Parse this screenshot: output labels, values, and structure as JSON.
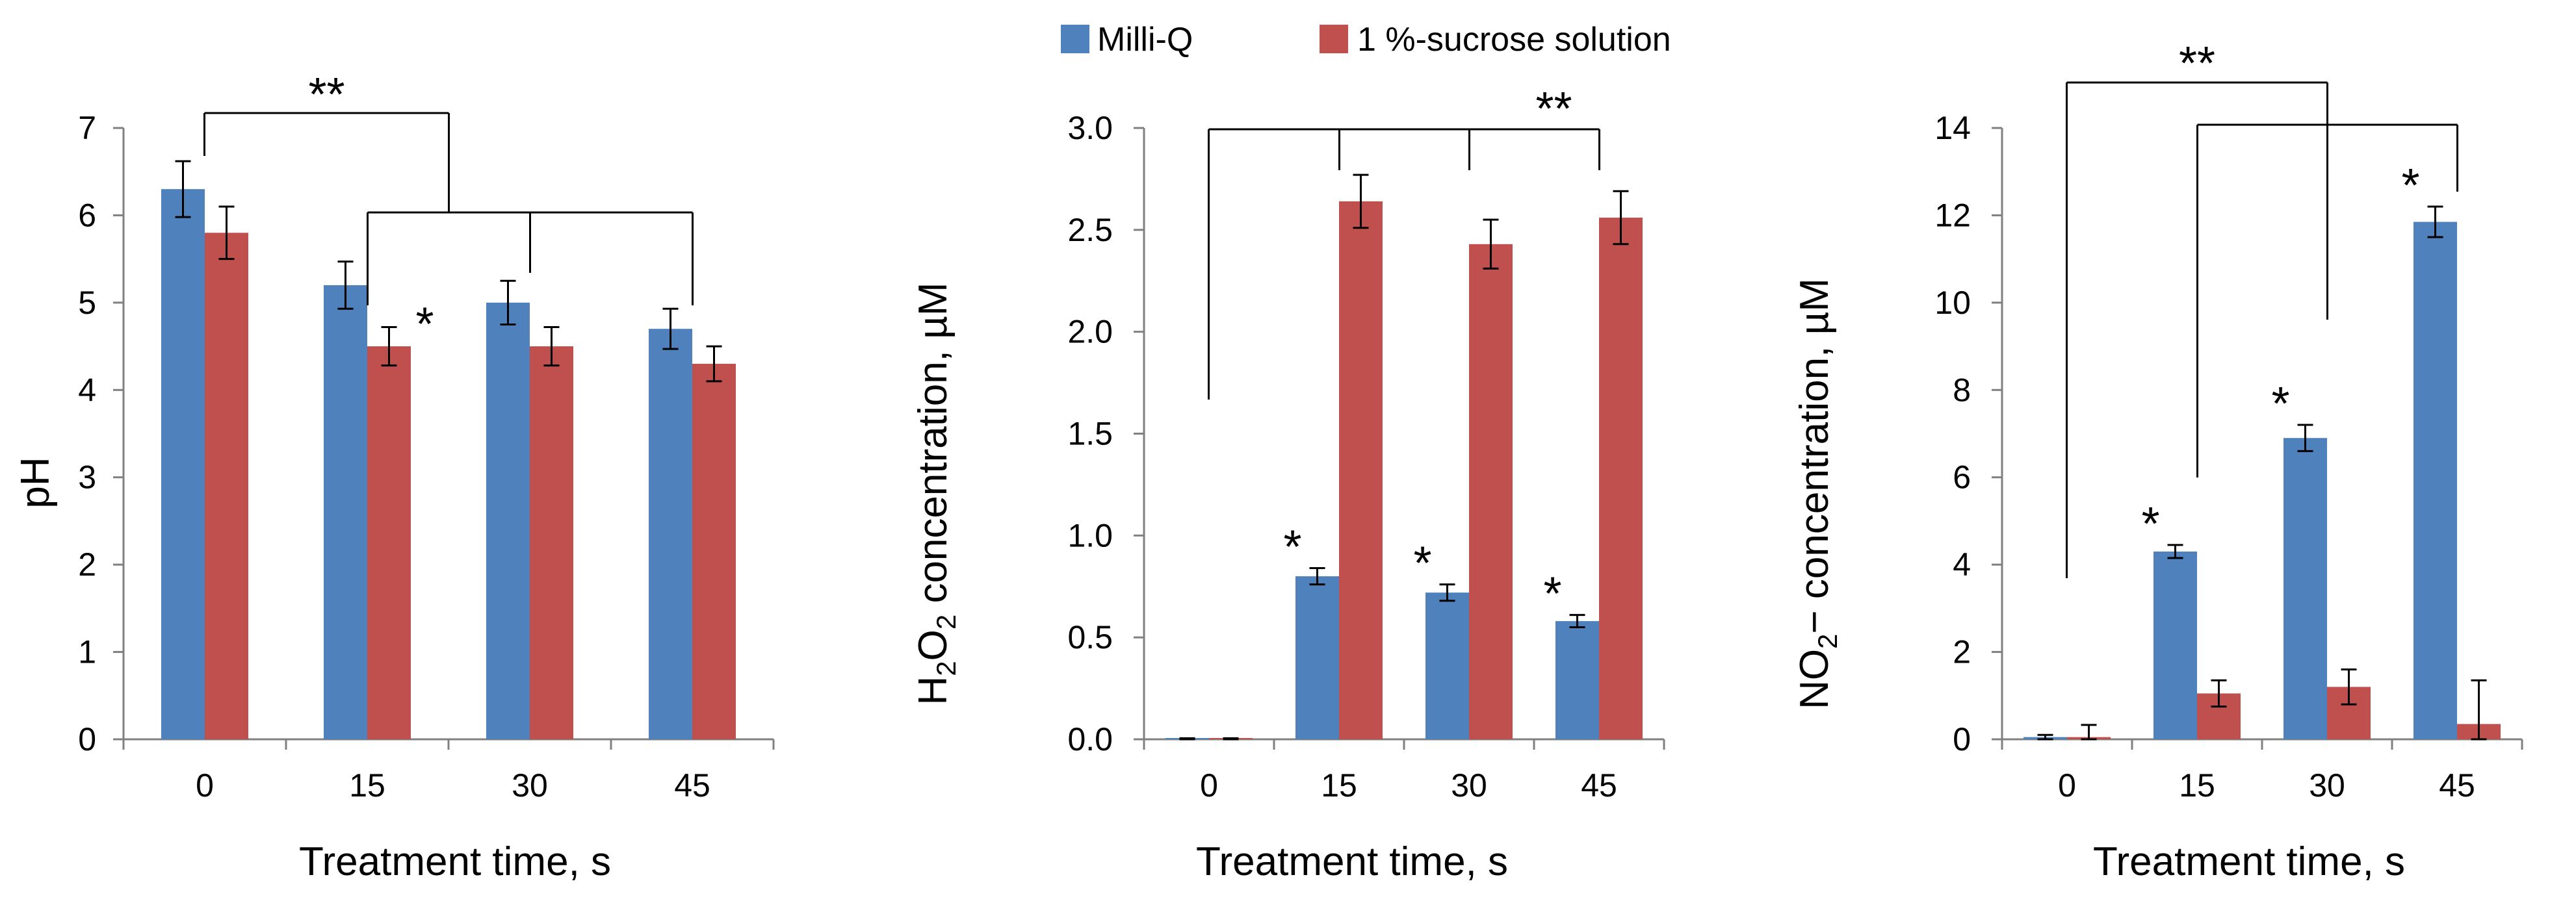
{
  "legend": [
    {
      "name": "Milli-Q",
      "color": "#4f81bd"
    },
    {
      "name": "1 %-sucrose solution",
      "color": "#c0504d"
    }
  ],
  "chart_data": [
    {
      "type": "bar",
      "categories": [
        "0",
        "15",
        "30",
        "45"
      ],
      "series": [
        {
          "name": "Milli-Q",
          "values": [
            6.3,
            5.2,
            5.0,
            4.7
          ],
          "errors": [
            0.32,
            0.27,
            0.25,
            0.23
          ]
        },
        {
          "name": "1 %-sucrose solution",
          "values": [
            5.8,
            4.5,
            4.5,
            4.3
          ],
          "errors": [
            0.3,
            0.22,
            0.22,
            0.2
          ]
        }
      ],
      "xlabel": "Treatment time, s",
      "ylabel": "pH",
      "ylim": [
        0,
        7
      ],
      "yticks": [
        0,
        1,
        2,
        3,
        4,
        5,
        6,
        7
      ],
      "ytick_labels": [
        "0",
        "1",
        "2",
        "3",
        "4",
        "5",
        "6",
        "7"
      ],
      "annotations": {
        "single": [
          {
            "category": 1,
            "series": 1,
            "text": "*"
          }
        ],
        "double": "**"
      }
    },
    {
      "type": "bar",
      "categories": [
        "0",
        "15",
        "30",
        "45"
      ],
      "series": [
        {
          "name": "Milli-Q",
          "values": [
            0.0,
            0.8,
            0.72,
            0.58
          ],
          "errors": [
            0.005,
            0.04,
            0.04,
            0.03
          ]
        },
        {
          "name": "1 %-sucrose solution",
          "values": [
            0.0,
            2.64,
            2.43,
            2.56
          ],
          "errors": [
            0.005,
            0.13,
            0.12,
            0.13
          ]
        }
      ],
      "xlabel": "Treatment time, s",
      "ylabel_parts": [
        "H",
        "2",
        "O",
        "2",
        " concentration, µM"
      ],
      "ylim": [
        0,
        3
      ],
      "yticks": [
        0,
        0.5,
        1.0,
        1.5,
        2.0,
        2.5,
        3.0
      ],
      "ytick_labels": [
        "0.0",
        "0.5",
        "1.0",
        "1.5",
        "2.0",
        "2.5",
        "3.0"
      ],
      "annotations": {
        "single": [
          {
            "category": 1,
            "series": 0,
            "text": "*"
          },
          {
            "category": 2,
            "series": 0,
            "text": "*"
          },
          {
            "category": 3,
            "series": 0,
            "text": "*"
          }
        ],
        "double": "**"
      }
    },
    {
      "type": "bar",
      "categories": [
        "0",
        "15",
        "30",
        "45"
      ],
      "series": [
        {
          "name": "Milli-Q",
          "values": [
            0.05,
            4.3,
            6.9,
            11.85
          ],
          "errors": [
            0.05,
            0.15,
            0.3,
            0.35
          ]
        },
        {
          "name": "1 %-sucrose solution",
          "values": [
            0.05,
            1.05,
            1.2,
            0.35
          ],
          "errors": [
            0.28,
            0.3,
            0.4,
            1.0
          ]
        }
      ],
      "xlabel": "Treatment time, s",
      "ylabel_parts": [
        "NO",
        "2",
        "− concentration, µM"
      ],
      "ylim": [
        0,
        14
      ],
      "yticks": [
        0,
        2,
        4,
        6,
        8,
        10,
        12,
        14
      ],
      "ytick_labels": [
        "0",
        "2",
        "4",
        "6",
        "8",
        "10",
        "12",
        "14"
      ],
      "annotations": {
        "single": [
          {
            "category": 1,
            "series": 0,
            "text": "*"
          },
          {
            "category": 2,
            "series": 0,
            "text": "*"
          },
          {
            "category": 3,
            "series": 0,
            "text": "*"
          }
        ],
        "double": "**"
      }
    }
  ]
}
